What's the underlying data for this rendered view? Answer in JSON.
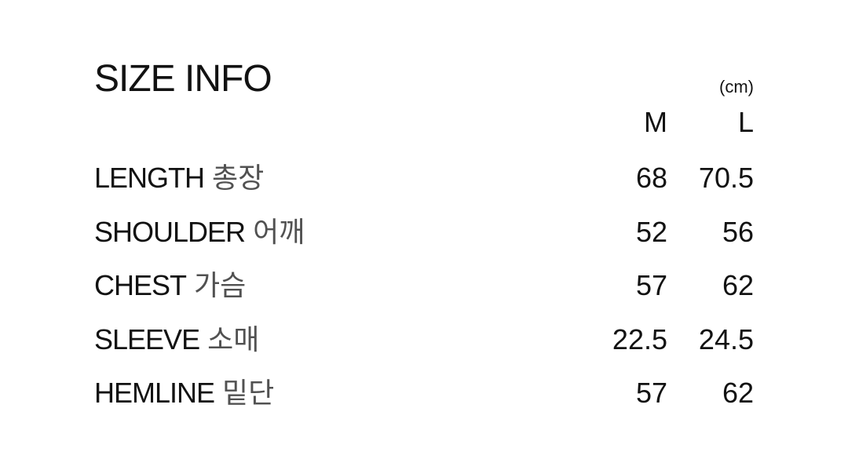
{
  "header": {
    "title": "SIZE INFO",
    "unit_label": "(cm)"
  },
  "table": {
    "size_columns": [
      "M",
      "L"
    ],
    "rows": [
      {
        "label_en": "LENGTH",
        "label_ko": "총장",
        "values": [
          "68",
          "70.5"
        ]
      },
      {
        "label_en": "SHOULDER",
        "label_ko": "어깨",
        "values": [
          "52",
          "56"
        ]
      },
      {
        "label_en": "CHEST",
        "label_ko": "가슴",
        "values": [
          "57",
          "62"
        ]
      },
      {
        "label_en": "SLEEVE",
        "label_ko": "소매",
        "values": [
          "22.5",
          "24.5"
        ]
      },
      {
        "label_en": "HEMLINE",
        "label_ko": "밑단",
        "values": [
          "57",
          "62"
        ]
      }
    ]
  },
  "colors": {
    "background": "#ffffff",
    "text_primary": "#121212",
    "text_secondary": "#515151"
  }
}
